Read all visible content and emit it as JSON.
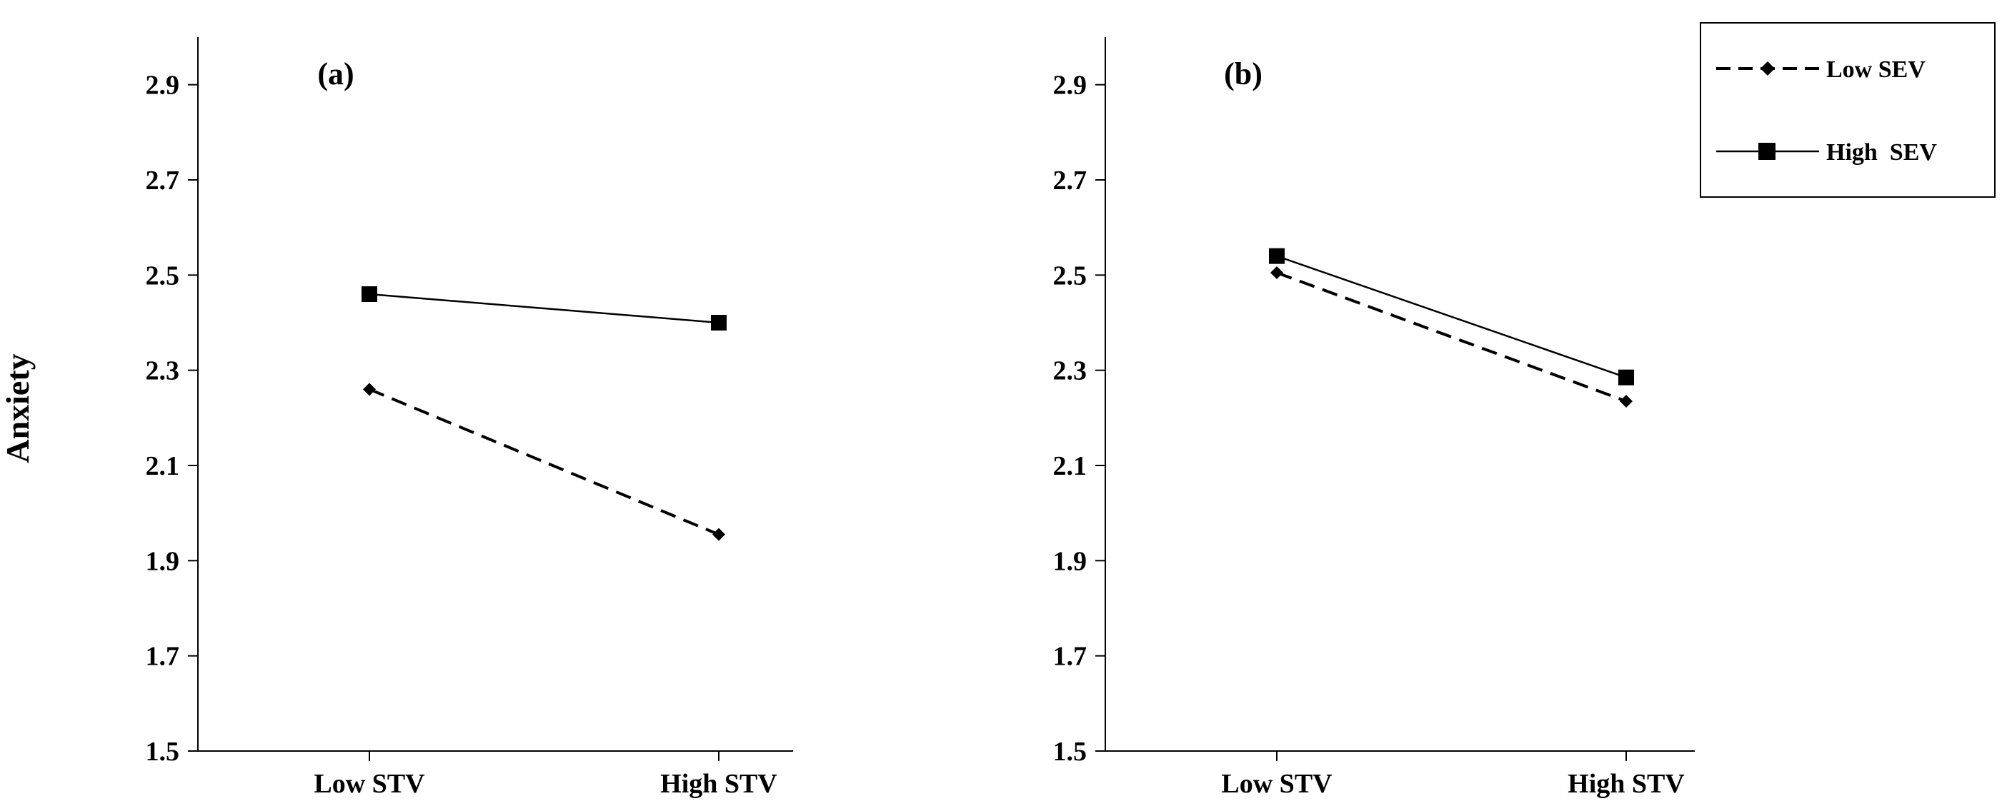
{
  "chart_data": [
    {
      "type": "line",
      "title": "",
      "panel_label": "(a)",
      "xlabel": "",
      "ylabel": "Anxiety",
      "categories": [
        "Low STV",
        "High  STV"
      ],
      "ylim": [
        1.5,
        3.0
      ],
      "yticks": [
        "1.5",
        "1.7",
        "1.9",
        "2.1",
        "2.3",
        "2.5",
        "2.7",
        "2.9"
      ],
      "grid": false,
      "series": [
        {
          "name": "Low SEV",
          "style": "dashed",
          "marker": "diamond",
          "values": [
            2.26,
            1.955
          ]
        },
        {
          "name": "High  SEV",
          "style": "solid",
          "marker": "square",
          "values": [
            2.46,
            2.4
          ]
        }
      ]
    },
    {
      "type": "line",
      "title": "",
      "panel_label": "(b)",
      "xlabel": "",
      "ylabel": "",
      "categories": [
        "Low STV",
        "High  STV"
      ],
      "ylim": [
        1.5,
        3.0
      ],
      "yticks": [
        "1.5",
        "1.7",
        "1.9",
        "2.1",
        "2.3",
        "2.5",
        "2.7",
        "2.9"
      ],
      "grid": false,
      "series": [
        {
          "name": "Low SEV",
          "style": "dashed",
          "marker": "diamond",
          "values": [
            2.505,
            2.235
          ]
        },
        {
          "name": "High  SEV",
          "style": "solid",
          "marker": "square",
          "values": [
            2.54,
            2.285
          ]
        }
      ]
    }
  ],
  "legend": {
    "position": "top-right",
    "items": [
      "Low SEV",
      "High  SEV"
    ]
  },
  "colors": {
    "line": "#000000",
    "background": "#ffffff"
  }
}
